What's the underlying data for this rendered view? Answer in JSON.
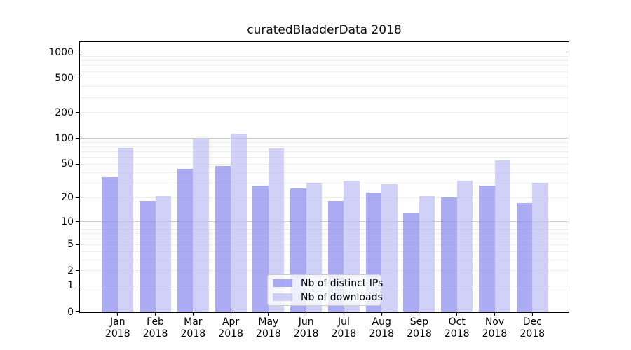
{
  "title": "curatedBladderData 2018",
  "chart_data": {
    "type": "bar",
    "title": "curatedBladderData 2018",
    "categories": [
      "Jan",
      "Feb",
      "Mar",
      "Apr",
      "May",
      "Jun",
      "Jul",
      "Aug",
      "Sep",
      "Oct",
      "Nov",
      "Dec"
    ],
    "category_year": "2018",
    "series": [
      {
        "name": "Nb of distinct IPs",
        "color": "#8888ee",
        "values": [
          35,
          18,
          44,
          48,
          28,
          26,
          18,
          23,
          13,
          20,
          28,
          17
        ]
      },
      {
        "name": "Nb of downloads",
        "color": "#bebef5",
        "values": [
          78,
          21,
          100,
          114,
          76,
          30,
          32,
          29,
          21,
          32,
          55,
          30
        ]
      }
    ],
    "bar_opacity": 0.7,
    "xlabel": "",
    "ylabel": "",
    "yscale": "log1p",
    "ylim": [
      0,
      1327
    ],
    "yticks": [
      0,
      1,
      2,
      5,
      10,
      20,
      50,
      100,
      200,
      500,
      1000
    ],
    "major_gridlines": [
      1,
      10,
      100,
      1000
    ],
    "minor_gridlines": [
      2,
      3,
      4,
      5,
      6,
      7,
      8,
      9,
      20,
      30,
      40,
      50,
      60,
      70,
      80,
      90,
      200,
      300,
      400,
      500,
      600,
      700,
      800,
      900
    ],
    "grid": true,
    "legend_position": "lower center",
    "colors": {
      "background": "#ffffff",
      "axis": "#000000",
      "grid_major": "#c9c9c9",
      "grid_minor": "#ececec",
      "text": "#000000"
    }
  }
}
